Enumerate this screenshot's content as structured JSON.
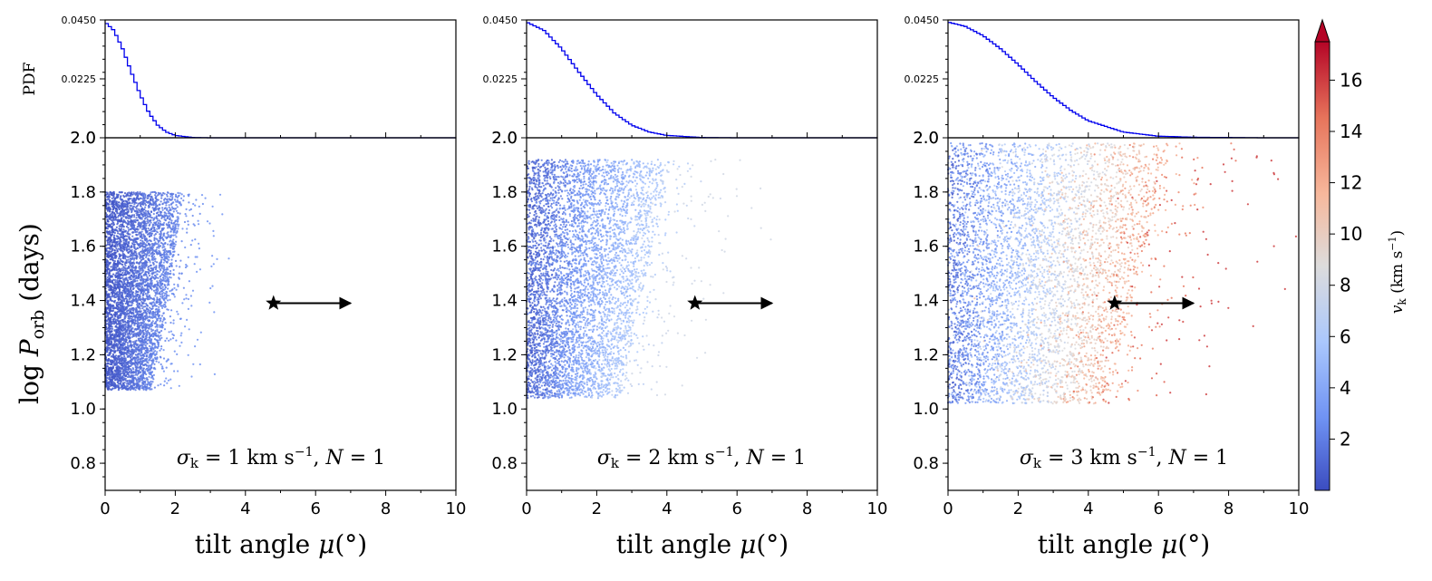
{
  "figure": {
    "pdf_ylabel": "PDF",
    "main_ylabel": "log P_orb (days)",
    "main_ylabel_parts": {
      "prefix": "log ",
      "var": "P",
      "sub": "orb",
      "suffix": " (days)"
    },
    "xlabel_parts": {
      "prefix": "tilt angle ",
      "var": "μ",
      "suffix": "(°)"
    },
    "colorbar_label": "v_k (km s^-1)"
  },
  "colorbar": {
    "ticks": [
      "2",
      "4",
      "6",
      "8",
      "10",
      "12",
      "14",
      "16"
    ],
    "range": [
      0,
      17.5
    ],
    "extend": "max",
    "colormap": "coolwarm",
    "colors": [
      "#3b4cc0",
      "#6f92f3",
      "#aac7fd",
      "#dddcdc",
      "#f7b89c",
      "#e7745b",
      "#b40426"
    ]
  },
  "chart_data": [
    {
      "type": "scatter",
      "annotation": "σk = 1 km s^-1, N = 1",
      "sigma_k": 1,
      "N": 1,
      "xlabel": "tilt angle μ(°)",
      "ylabel": "log P_orb (days)",
      "xlim": [
        0,
        10
      ],
      "ylim": [
        0.7,
        2.0
      ],
      "xticks": [
        "0",
        "2",
        "4",
        "6",
        "8",
        "10"
      ],
      "yticks": [
        "0.8",
        "1.0",
        "1.2",
        "1.4",
        "1.6",
        "1.8",
        "2.0"
      ],
      "point_cloud": {
        "y_range": [
          1.07,
          1.8
        ],
        "x_extent_at_top": 3.0,
        "x_extent_at_bottom": 1.8,
        "vk_max": 3,
        "max_tilt_stray": 3.7
      },
      "observed": {
        "marker": "star",
        "x": 4.8,
        "y": 1.39,
        "arrow_to_x": 7.0
      },
      "pdf": {
        "ylabel": "PDF",
        "yticks": [
          "0.0225",
          "0.0450"
        ],
        "ylim": [
          0,
          0.045
        ],
        "mu_peak": 0.045,
        "scale": 1.0,
        "curve_x": [
          0,
          0.25,
          0.5,
          0.75,
          1.0,
          1.25,
          1.5,
          1.75,
          2.0,
          2.5,
          3.0
        ],
        "curve_y": [
          0.0442,
          0.041,
          0.034,
          0.025,
          0.0165,
          0.0095,
          0.0048,
          0.0022,
          0.0009,
          0.0001,
          0.0
        ]
      }
    },
    {
      "type": "scatter",
      "annotation": "σk = 2 km s^-1, N = 1",
      "sigma_k": 2,
      "N": 1,
      "xlabel": "tilt angle μ(°)",
      "ylabel": "log P_orb (days)",
      "xlim": [
        0,
        10
      ],
      "ylim": [
        0.7,
        2.0
      ],
      "xticks": [
        "0",
        "2",
        "4",
        "6",
        "8",
        "10"
      ],
      "yticks": [
        "0.8",
        "1.0",
        "1.2",
        "1.4",
        "1.6",
        "1.8",
        "2.0"
      ],
      "point_cloud": {
        "y_range": [
          1.04,
          1.92
        ],
        "x_extent_at_top": 5.5,
        "x_extent_at_bottom": 3.5,
        "vk_max": 8,
        "max_tilt_stray": 7.2
      },
      "observed": {
        "marker": "star",
        "x": 4.8,
        "y": 1.39,
        "arrow_to_x": 7.0
      },
      "pdf": {
        "ylabel": "",
        "yticks": [
          "0.0225",
          "0.0450"
        ],
        "ylim": [
          0,
          0.045
        ],
        "mu_peak": 0.0445,
        "scale": 2.0,
        "curve_x": [
          0,
          0.5,
          1.0,
          1.5,
          2.0,
          2.5,
          3.0,
          3.5,
          4.0,
          5.0,
          6.0
        ],
        "curve_y": [
          0.0442,
          0.041,
          0.034,
          0.025,
          0.0165,
          0.0095,
          0.0048,
          0.0022,
          0.0009,
          0.0001,
          0.0
        ]
      }
    },
    {
      "type": "scatter",
      "annotation": "σk = 3 km s^-1, N = 1",
      "sigma_k": 3,
      "N": 1,
      "xlabel": "tilt angle μ(°)",
      "ylabel": "log P_orb (days)",
      "xlim": [
        0,
        10
      ],
      "ylim": [
        0.7,
        2.0
      ],
      "xticks": [
        "0",
        "2",
        "4",
        "6",
        "8",
        "10"
      ],
      "yticks": [
        "0.8",
        "1.0",
        "1.2",
        "1.4",
        "1.6",
        "1.8",
        "2.0"
      ],
      "point_cloud": {
        "y_range": [
          1.02,
          1.98
        ],
        "x_extent_at_top": 8.5,
        "x_extent_at_bottom": 6.0,
        "vk_max": 16,
        "max_tilt_stray": 10
      },
      "observed": {
        "marker": "star",
        "x": 4.75,
        "y": 1.39,
        "arrow_to_x": 7.0
      },
      "pdf": {
        "ylabel": "",
        "yticks": [
          "0.0225",
          "0.0450"
        ],
        "ylim": [
          0,
          0.045
        ],
        "mu_peak": 0.0445,
        "scale": 3.0,
        "curve_x": [
          0,
          0.5,
          1.0,
          1.5,
          2.0,
          2.5,
          3.0,
          3.5,
          4.0,
          5.0,
          6.0,
          7.0,
          8.0,
          9.0
        ],
        "curve_y": [
          0.0442,
          0.0425,
          0.039,
          0.034,
          0.028,
          0.0215,
          0.0155,
          0.0105,
          0.0065,
          0.0022,
          0.0006,
          0.0002,
          0.0001,
          0.0
        ]
      }
    }
  ]
}
